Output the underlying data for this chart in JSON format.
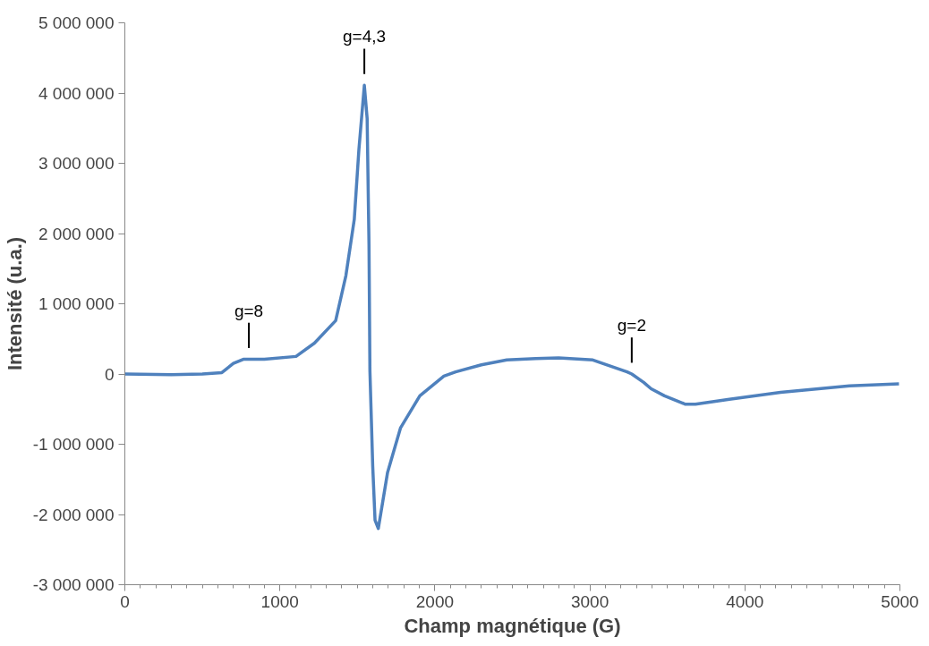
{
  "chart_data": {
    "type": "line",
    "xlabel": "Champ magnétique (G)",
    "ylabel": "Intensité (u.a.)",
    "xlim": [
      0,
      5000
    ],
    "xticks": [
      0,
      1000,
      2000,
      3000,
      4000,
      5000
    ],
    "ylim": [
      -3000000,
      5000000
    ],
    "yticks": [
      {
        "value": -3000000,
        "label": "-3 000 000"
      },
      {
        "value": -2000000,
        "label": "-2 000 000"
      },
      {
        "value": -1000000,
        "label": "-1 000 000"
      },
      {
        "value": 0,
        "label": "0"
      },
      {
        "value": 1000000,
        "label": "1 000 000"
      },
      {
        "value": 2000000,
        "label": "2 000 000"
      },
      {
        "value": 3000000,
        "label": "3 000 000"
      },
      {
        "value": 4000000,
        "label": "4 000 000"
      },
      {
        "value": 5000000,
        "label": "5 000 000"
      }
    ],
    "grid": false,
    "marker": "none",
    "line_style": "solid",
    "series": [
      {
        "color": "#4f81bd",
        "x": [
          0,
          300,
          500,
          626,
          700,
          764,
          800,
          900,
          1104,
          1223,
          1360,
          1426,
          1480,
          1510,
          1545,
          1563,
          1575,
          1581,
          1599,
          1614,
          1635,
          1695,
          1778,
          1903,
          2058,
          2134,
          2300,
          2464,
          2650,
          2798,
          3019,
          3240,
          3270,
          3347,
          3395,
          3481,
          3616,
          3681,
          3900,
          4230,
          4675,
          4994
        ],
        "values": [
          0,
          -10000,
          0,
          20000,
          150000,
          210000,
          210000,
          210000,
          250000,
          440000,
          760000,
          1400000,
          2200000,
          3200000,
          4110000,
          3640000,
          1840000,
          40000,
          -1310000,
          -2080000,
          -2200000,
          -1400000,
          -770000,
          -310000,
          -30000,
          30000,
          130000,
          200000,
          220000,
          230000,
          200000,
          30000,
          0,
          -120000,
          -210000,
          -310000,
          -430000,
          -430000,
          -360000,
          -260000,
          -170000,
          -140000
        ]
      }
    ],
    "annotations": [
      {
        "text": "g=8",
        "x": 800,
        "y": 210000
      },
      {
        "text": "g=4,3",
        "x": 1545,
        "y": 4110000
      },
      {
        "text": "g=2",
        "x": 3270,
        "y": 0
      }
    ]
  }
}
